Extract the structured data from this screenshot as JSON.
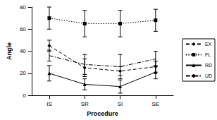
{
  "chart_data": {
    "type": "line",
    "x_label": "Procedure",
    "y_label": "Angle",
    "categories": [
      "IS",
      "SR",
      "SI",
      "SE"
    ],
    "ylim": [
      0,
      80
    ],
    "yticks": [
      0,
      20,
      40,
      60,
      80
    ],
    "grid": false,
    "legend": "right",
    "series": [
      {
        "name": "EX",
        "color": "#000000",
        "marker": "diamond",
        "line_style": "dashed",
        "values": [
          45,
          25,
          22,
          26
        ],
        "errors": [
          5,
          8,
          4,
          5
        ]
      },
      {
        "name": "FL",
        "color": "#000000",
        "marker": "square",
        "line_style": "dotted",
        "values": [
          70,
          65,
          65,
          68
        ],
        "errors": [
          10,
          12,
          12,
          10
        ]
      },
      {
        "name": "RD",
        "color": "#000000",
        "marker": "triangle",
        "line_style": "solid",
        "values": [
          20,
          10,
          8,
          21
        ],
        "errors": [
          7,
          5,
          6,
          6
        ]
      },
      {
        "name": "UD",
        "color": "#000000",
        "marker": "none",
        "line_style": "dashdot",
        "values": [
          36,
          28,
          26,
          33
        ],
        "errors": [
          5,
          9,
          11,
          7
        ]
      }
    ]
  }
}
